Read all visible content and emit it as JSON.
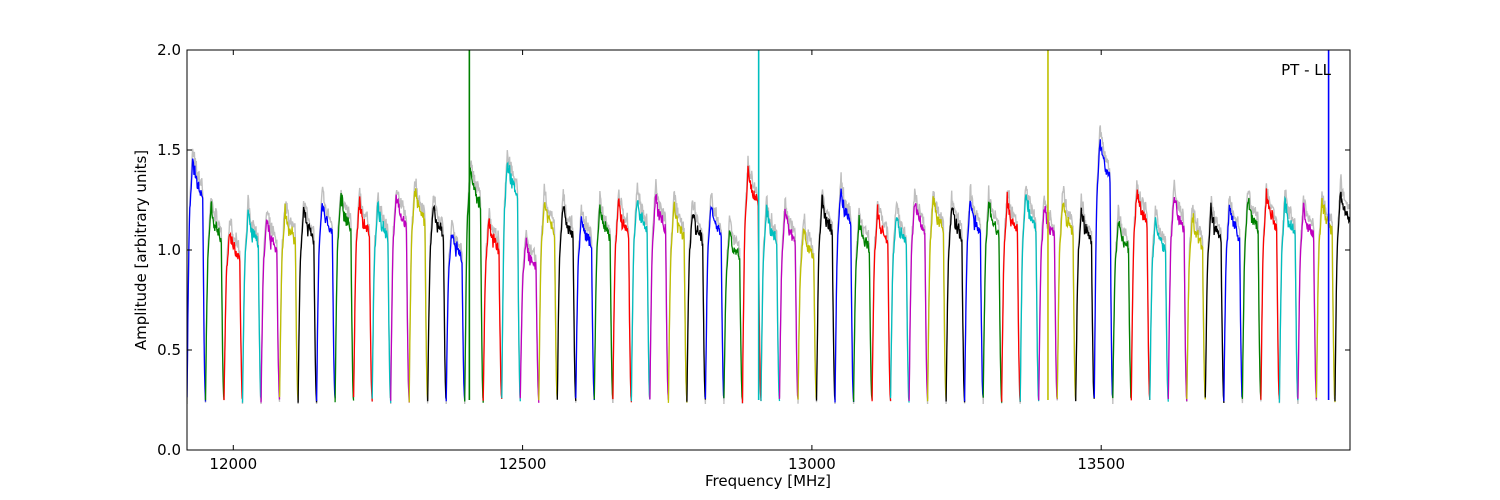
{
  "chart_data": {
    "type": "line",
    "title": "",
    "annotation": "PT - LL",
    "xlabel": "Frequency [MHz]",
    "ylabel": "Amplitude [arbitrary units]",
    "xlim": [
      11920,
      13930
    ],
    "ylim": [
      0.0,
      2.0
    ],
    "x_ticks": [
      12000,
      12500,
      13000,
      13500
    ],
    "x_tick_labels": [
      "12000",
      "12500",
      "13000",
      "13500"
    ],
    "y_ticks": [
      0.0,
      0.5,
      1.0,
      1.5,
      2.0
    ],
    "y_tick_labels": [
      "0.0",
      "0.5",
      "1.0",
      "1.5",
      "2.0"
    ],
    "grid": false,
    "legend": "none",
    "background_trace_color": "#bfbfbf",
    "band_colors": [
      "#0000ff",
      "#008000",
      "#ff0000",
      "#00bfbf",
      "#bf00bf",
      "#bfbf00",
      "#000000"
    ],
    "band_start_mhz": 11920,
    "band_width_mhz": 32,
    "band_count": 63,
    "band_levels": [
      1.45,
      1.22,
      1.1,
      1.18,
      1.15,
      1.2,
      1.21,
      1.24,
      1.27,
      1.24,
      1.22,
      1.28,
      1.31,
      1.23,
      1.1,
      1.4,
      1.15,
      1.45,
      1.05,
      1.25,
      1.22,
      1.17,
      1.22,
      1.24,
      1.26,
      1.27,
      1.22,
      1.2,
      1.23,
      1.1,
      1.4,
      1.2,
      1.2,
      1.11,
      1.25,
      1.3,
      1.15,
      1.2,
      1.18,
      1.25,
      1.26,
      1.22,
      1.25,
      1.24,
      1.25,
      1.28,
      1.22,
      1.25,
      1.2,
      1.55,
      1.15,
      1.3,
      1.15,
      1.27,
      1.17,
      1.2,
      1.22,
      1.26,
      1.28,
      1.24,
      1.22,
      1.25,
      1.3
    ],
    "band_min": 0.25,
    "spikes": [
      {
        "x": 12408,
        "y_top": 2.0,
        "color": "#008000"
      },
      {
        "x": 12908,
        "y_top": 2.0,
        "color": "#00bfbf"
      },
      {
        "x": 13408,
        "y_top": 2.0,
        "color": "#bfbf00"
      },
      {
        "x": 13893,
        "y_top": 2.0,
        "color": "#0000ff"
      }
    ]
  }
}
